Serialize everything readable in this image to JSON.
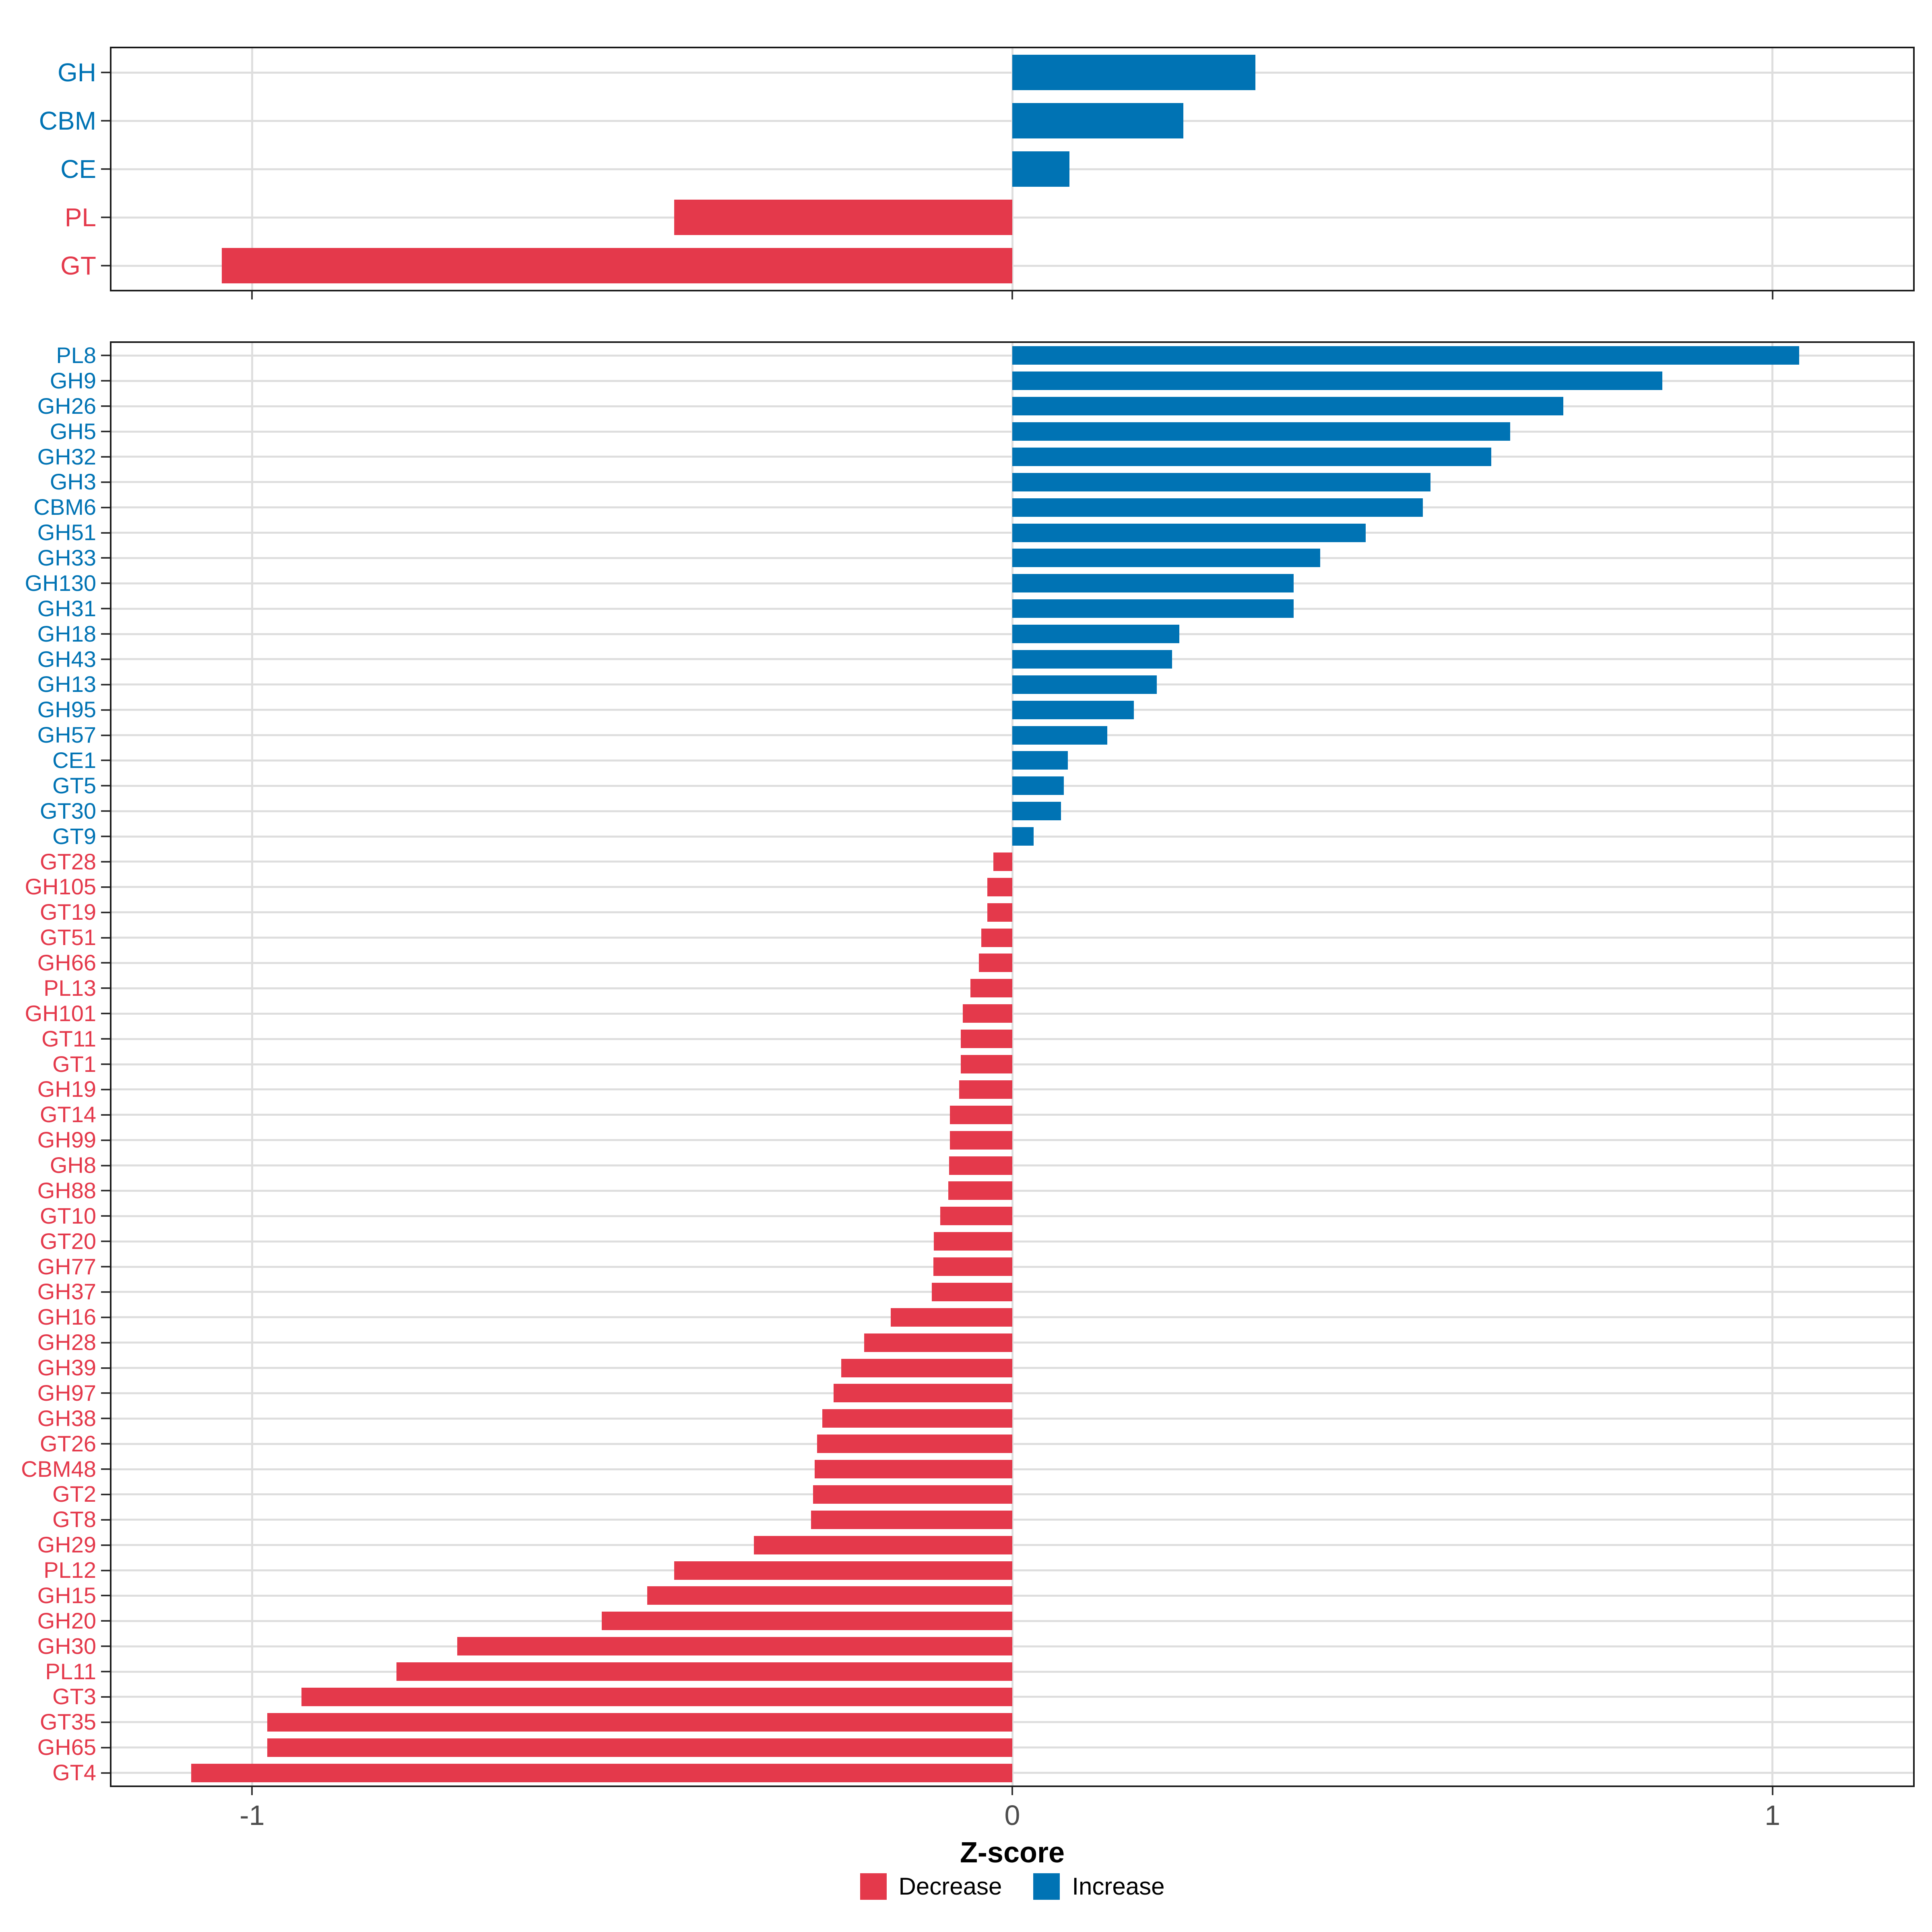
{
  "colors": {
    "increase": "#0073B4",
    "decrease": "#E4394B",
    "gridline": "#DEDEDE",
    "panel_border": "#1A1A1A",
    "tick_mark": "#333333",
    "axis_text": "#4D4D4D",
    "axis_title": "#000000"
  },
  "x_axis": {
    "label": "Z-score",
    "limits": [
      -1.185,
      1.185
    ],
    "ticks": [
      {
        "label": "-1",
        "value": -1
      },
      {
        "label": "0",
        "value": 0
      },
      {
        "label": "1",
        "value": 1
      }
    ]
  },
  "legend": {
    "items": [
      {
        "label": "Decrease",
        "color_key": "decrease"
      },
      {
        "label": "Increase",
        "color_key": "increase"
      }
    ]
  },
  "chart_data": [
    {
      "type": "bar",
      "orientation": "horizontal",
      "panel": "top",
      "title": "",
      "xlabel": "",
      "grid": true,
      "xlim": [
        -1.185,
        1.185
      ],
      "categories": [
        "GH",
        "CBM",
        "CE",
        "PL",
        "GT"
      ],
      "values": [
        0.32,
        0.225,
        0.075,
        -0.445,
        -1.04
      ],
      "series_rule": "positive = Increase (blue), negative = Decrease (red)"
    },
    {
      "type": "bar",
      "orientation": "horizontal",
      "panel": "bottom",
      "title": "",
      "xlabel": "Z-score",
      "grid": true,
      "xlim": [
        -1.185,
        1.185
      ],
      "legend_position": "bottom",
      "categories": [
        "PL8",
        "GH9",
        "GH26",
        "GH5",
        "GH32",
        "GH3",
        "CBM6",
        "GH51",
        "GH33",
        "GH130",
        "GH31",
        "GH18",
        "GH43",
        "GH13",
        "GH95",
        "GH57",
        "CE1",
        "GT5",
        "GT30",
        "GT9",
        "GT28",
        "GH105",
        "GT19",
        "GT51",
        "GH66",
        "PL13",
        "GH101",
        "GT11",
        "GT1",
        "GH19",
        "GT14",
        "GH99",
        "GH8",
        "GH88",
        "GT10",
        "GT20",
        "GH77",
        "GH37",
        "GH16",
        "GH28",
        "GH39",
        "GH97",
        "GH38",
        "GT26",
        "CBM48",
        "GT2",
        "GT8",
        "GH29",
        "PL12",
        "GH15",
        "GH20",
        "GH30",
        "PL11",
        "GT3",
        "GT35",
        "GH65",
        "GT4"
      ],
      "values": [
        1.035,
        0.855,
        0.725,
        0.655,
        0.63,
        0.55,
        0.54,
        0.465,
        0.405,
        0.37,
        0.37,
        0.22,
        0.21,
        0.19,
        0.16,
        0.125,
        0.073,
        0.068,
        0.064,
        0.028,
        -0.025,
        -0.033,
        -0.033,
        -0.041,
        -0.044,
        -0.055,
        -0.065,
        -0.068,
        -0.068,
        -0.07,
        -0.082,
        -0.082,
        -0.083,
        -0.084,
        -0.095,
        -0.103,
        -0.104,
        -0.106,
        -0.16,
        -0.195,
        -0.225,
        -0.235,
        -0.25,
        -0.257,
        -0.26,
        -0.262,
        -0.265,
        -0.34,
        -0.445,
        -0.48,
        -0.54,
        -0.73,
        -0.81,
        -0.935,
        -0.98,
        -0.98,
        -1.08
      ],
      "series_rule": "positive = Increase (blue), negative = Decrease (red)"
    }
  ]
}
